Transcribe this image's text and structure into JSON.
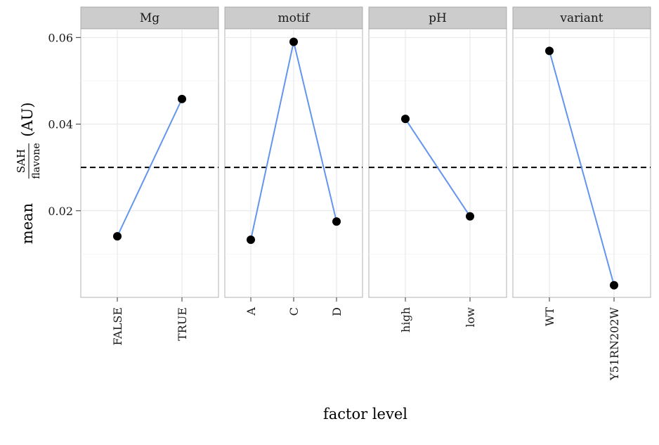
{
  "chart_data": {
    "type": "line",
    "xlabel": "factor level",
    "ylabel": {
      "prefix": "mean",
      "numerator": "SAH",
      "denominator": "flavone",
      "unit": "(AU)"
    },
    "ylim": [
      0,
      0.062
    ],
    "yticks": [
      0.02,
      0.04,
      0.06
    ],
    "ytick_labels": [
      "0.02",
      "0.04",
      "0.06"
    ],
    "reference_line": {
      "y": 0.03,
      "style": "dashed",
      "color": "#000000"
    },
    "grid": true,
    "series_color": "#6495ed",
    "point_color": "#000000",
    "strip_color": "#cccccc",
    "facets": [
      {
        "label": "Mg",
        "categories": [
          "FALSE",
          "TRUE"
        ],
        "values": [
          0.0141,
          0.0458
        ]
      },
      {
        "label": "motif",
        "categories": [
          "A",
          "C",
          "D"
        ],
        "values": [
          0.0133,
          0.059,
          0.0175
        ]
      },
      {
        "label": "pH",
        "categories": [
          "high",
          "low"
        ],
        "values": [
          0.0412,
          0.0187
        ]
      },
      {
        "label": "variant",
        "categories": [
          "WT",
          "Y51RN202W"
        ],
        "values": [
          0.0569,
          0.0028
        ]
      }
    ]
  }
}
